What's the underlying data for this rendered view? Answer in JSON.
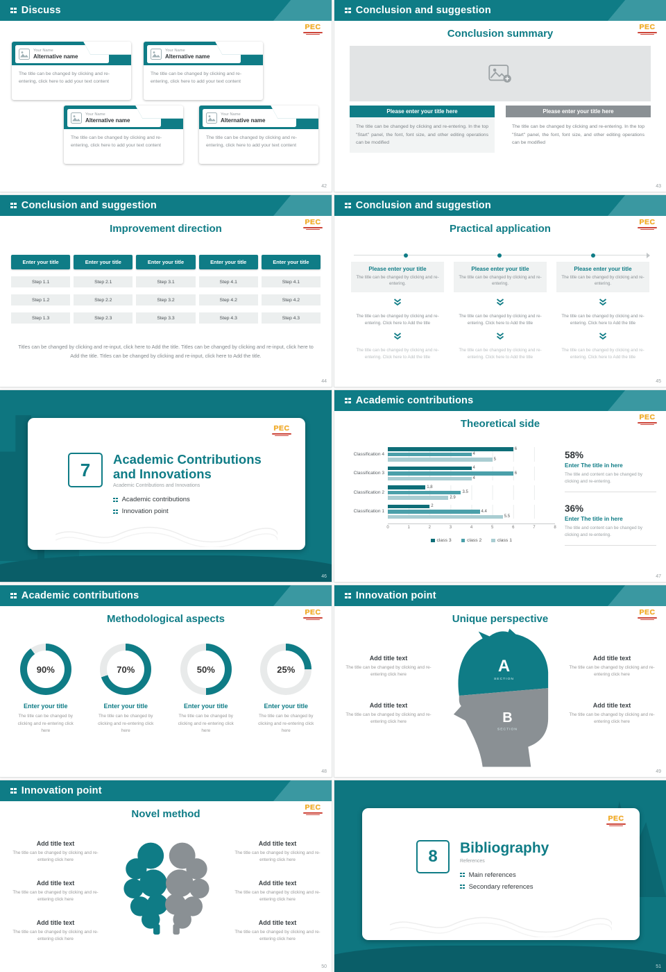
{
  "brand": {
    "logo_text": "PEC"
  },
  "slides": [
    {
      "id": "slide-42",
      "header": "Discuss",
      "page": "42",
      "cards": [
        {
          "name_label": "Your Name",
          "alt_name": "Alternative name",
          "body": "The title can be changed by clicking and re-entering, click here to add your text content"
        },
        {
          "name_label": "Your Name",
          "alt_name": "Alternative name",
          "body": "The title can be changed by clicking and re-entering, click here to add your text content"
        },
        {
          "name_label": "Your Name",
          "alt_name": "Alternative name",
          "body": "The title can be changed by clicking and re-entering, click here to add your text content"
        },
        {
          "name_label": "Your Name",
          "alt_name": "Alternative name",
          "body": "The title can be changed by clicking and re-entering, click here to add your text content"
        }
      ]
    },
    {
      "id": "slide-43",
      "header": "Conclusion and suggestion",
      "title": "Conclusion summary",
      "page": "43",
      "buttons": [
        "Please enter your title here",
        "Please enter your title here"
      ],
      "paras": [
        "The title can be changed by clicking and re-entering. In the top \"Start\" panel, the font, font size, and other editing operations can be modified",
        "The title can be changed by clicking and re-entering. In the top \"Start\" panel, the font, font size, and other editing operations can be modified"
      ]
    },
    {
      "id": "slide-44",
      "header": "Conclusion and suggestion",
      "title": "Improvement direction",
      "page": "44",
      "columns": [
        {
          "btn": "Enter your title",
          "steps": [
            "Step 1.1",
            "Step 1.2",
            "Step 1.3"
          ]
        },
        {
          "btn": "Enter your title",
          "steps": [
            "Step 2.1",
            "Step 2.2",
            "Step 2.3"
          ]
        },
        {
          "btn": "Enter your title",
          "steps": [
            "Step 3.1",
            "Step 3.2",
            "Step 3.3"
          ]
        },
        {
          "btn": "Enter your title",
          "steps": [
            "Step 4.1",
            "Step 4.2",
            "Step 4.3"
          ]
        },
        {
          "btn": "Enter your title",
          "steps": [
            "Step 4.1",
            "Step 4.2",
            "Step 4.3"
          ]
        }
      ],
      "footer": "Titles can be changed by clicking and re-input, click here to Add the title. Titles can be changed by clicking and re-input, click here to Add the title. Titles can be changed by clicking and re-input, click here to Add the title."
    },
    {
      "id": "slide-45",
      "header": "Conclusion and suggestion",
      "title": "Practical application",
      "page": "45",
      "columns": [
        {
          "btn": "Please enter your title",
          "sub": "The title can be changed by clicking and re-entering.",
          "mid": "The title can be changed by clicking and re-entering. Click here to Add the title",
          "bottom": "The title can be changed by clicking and re-entering. Click here to Add the title"
        },
        {
          "btn": "Please enter your title",
          "sub": "The title can be changed by clicking and re-entering.",
          "mid": "The title can be changed by clicking and re-entering. Click here to Add the title",
          "bottom": "The title can be changed by clicking and re-entering. Click here to Add the title"
        },
        {
          "btn": "Please enter your title",
          "sub": "The title can be changed by clicking and re-entering.",
          "mid": "The title can be changed by clicking and re-entering. Click here to Add the title",
          "bottom": "The title can be changed by clicking and re-entering. Click here to Add the title"
        }
      ]
    },
    {
      "id": "slide-46",
      "section_number": "7",
      "title": "Academic Contributions and Innovations",
      "subtitle": "Academic Contributions and Innovations",
      "bullets": [
        "Academic contributions",
        "Innovation point"
      ],
      "page": "46"
    },
    {
      "id": "slide-47",
      "header": "Academic contributions",
      "title": "Theoretical side",
      "page": "47",
      "chart_data": {
        "type": "bar",
        "orientation": "horizontal",
        "title": "Theoretical side",
        "categories": [
          "Classification 1",
          "Classification 2",
          "Classification 3",
          "Classification 4"
        ],
        "series": [
          {
            "name": "class 3",
            "color": "#0E6E78",
            "values": [
              2,
              1.8,
              4,
              6
            ]
          },
          {
            "name": "class 2",
            "color": "#4BA0AA",
            "values": [
              4.4,
              3.5,
              6,
              4
            ]
          },
          {
            "name": "class 1",
            "color": "#A9CDD2",
            "values": [
              5.5,
              2.9,
              4,
              5
            ]
          }
        ],
        "xlim": [
          0,
          8
        ],
        "xticks": [
          0,
          1,
          2,
          3,
          4,
          5,
          6,
          7,
          8
        ],
        "legend_position": "bottom",
        "grid": true
      },
      "stats": [
        {
          "value": "58%",
          "label": "Enter The title in here",
          "text": "The title and content can be changed by clicking and re-entering."
        },
        {
          "value": "36%",
          "label": "Enter The title in here",
          "text": "The title and content can be changed by clicking and re-entering."
        }
      ]
    },
    {
      "id": "slide-48",
      "header": "Academic contributions",
      "title": "Methodological aspects",
      "page": "48",
      "donuts": [
        {
          "percent": 90,
          "label": "Enter your title",
          "text": "The title can be changed by clicking and re-entering click here"
        },
        {
          "percent": 70,
          "label": "Enter your title",
          "text": "The title can be changed by clicking and re-entering click here"
        },
        {
          "percent": 50,
          "label": "Enter your title",
          "text": "The title can be changed by clicking and re-entering click here"
        },
        {
          "percent": 25,
          "label": "Enter your title",
          "text": "The title can be changed by clicking and re-entering click here"
        }
      ]
    },
    {
      "id": "slide-49",
      "header": "Innovation point",
      "title": "Unique perspective",
      "page": "49",
      "sections": [
        {
          "letter": "A",
          "label": "SECTION"
        },
        {
          "letter": "B",
          "label": "SECTION"
        }
      ],
      "blocks": [
        {
          "heading": "Add title text",
          "text": "The title can be changed by clicking and re-entering click here"
        },
        {
          "heading": "Add title text",
          "text": "The title can be changed by clicking and re-entering click here"
        },
        {
          "heading": "Add title text",
          "text": "The title can be changed by clicking and re-entering click here"
        },
        {
          "heading": "Add title text",
          "text": "The title can be changed by clicking and re-entering click here"
        }
      ]
    },
    {
      "id": "slide-50",
      "header": "Innovation point",
      "title": "Novel method",
      "page": "50",
      "blocks": [
        {
          "heading": "Add title text",
          "text": "The title can be changed by clicking and re-entering click here"
        },
        {
          "heading": "Add title text",
          "text": "The title can be changed by clicking and re-entering click here"
        },
        {
          "heading": "Add title text",
          "text": "The title can be changed by clicking and re-entering click here"
        },
        {
          "heading": "Add title text",
          "text": "The title can be changed by clicking and re-entering click here"
        },
        {
          "heading": "Add title text",
          "text": "The title can be changed by clicking and re-entering click here"
        },
        {
          "heading": "Add title text",
          "text": "The title can be changed by clicking and re-entering click here"
        }
      ]
    },
    {
      "id": "slide-51",
      "section_number": "8",
      "title": "Bibliography",
      "subtitle": "References",
      "bullets": [
        "Main references",
        "Secondary references"
      ],
      "page": "51"
    }
  ]
}
